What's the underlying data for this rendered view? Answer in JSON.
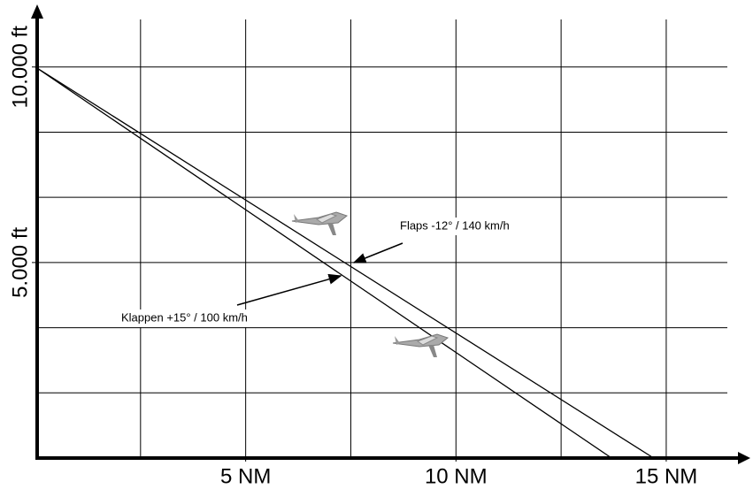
{
  "chart_data": {
    "type": "line",
    "series": [
      {
        "name": "Flaps -12°  /  140 km/h",
        "color": "#000000",
        "x": [
          0,
          14.7
        ],
        "values": [
          10000,
          0
        ]
      },
      {
        "name": "Klappen +15°  /  100 km/h",
        "color": "#000000",
        "x": [
          0,
          13.7
        ],
        "values": [
          10000,
          0
        ]
      }
    ],
    "xlim": [
      0,
      17
    ],
    "ylim": [
      0,
      11600
    ],
    "xticks": [
      {
        "value": 5,
        "label": "5 NM"
      },
      {
        "value": 10,
        "label": "10 NM"
      },
      {
        "value": 15,
        "label": "15 NM"
      }
    ],
    "yticks": [
      {
        "value": 5000,
        "label": "5.000 ft"
      },
      {
        "value": 10000,
        "label": "10.000 ft"
      }
    ],
    "x_gridlines": [
      2.5,
      5,
      7.5,
      10,
      12.5,
      15
    ],
    "y_gridlines": [
      1666.7,
      3333.3,
      5000,
      6666.7,
      8333.3,
      10000
    ],
    "grid": true
  }
}
